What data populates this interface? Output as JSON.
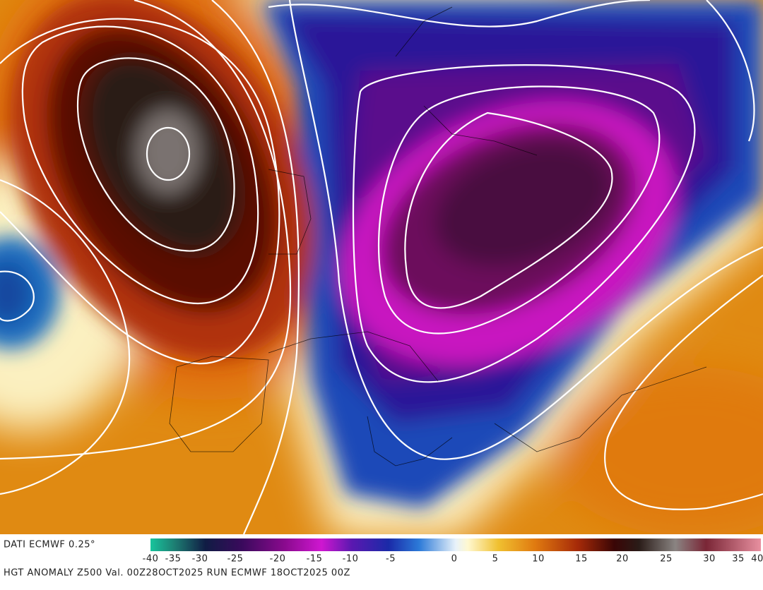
{
  "source": "DATI ECMWF 0.25°",
  "colorbar": {
    "ticks": [
      -40,
      -35,
      -30,
      -25,
      -20,
      -15,
      -10,
      -5,
      0,
      5,
      10,
      15,
      20,
      25,
      30,
      35,
      40
    ]
  },
  "caption": "HGT ANOMALY Z500 Val. 00Z28OCT2025 RUN ECMWF 18OCT2025 00Z"
}
